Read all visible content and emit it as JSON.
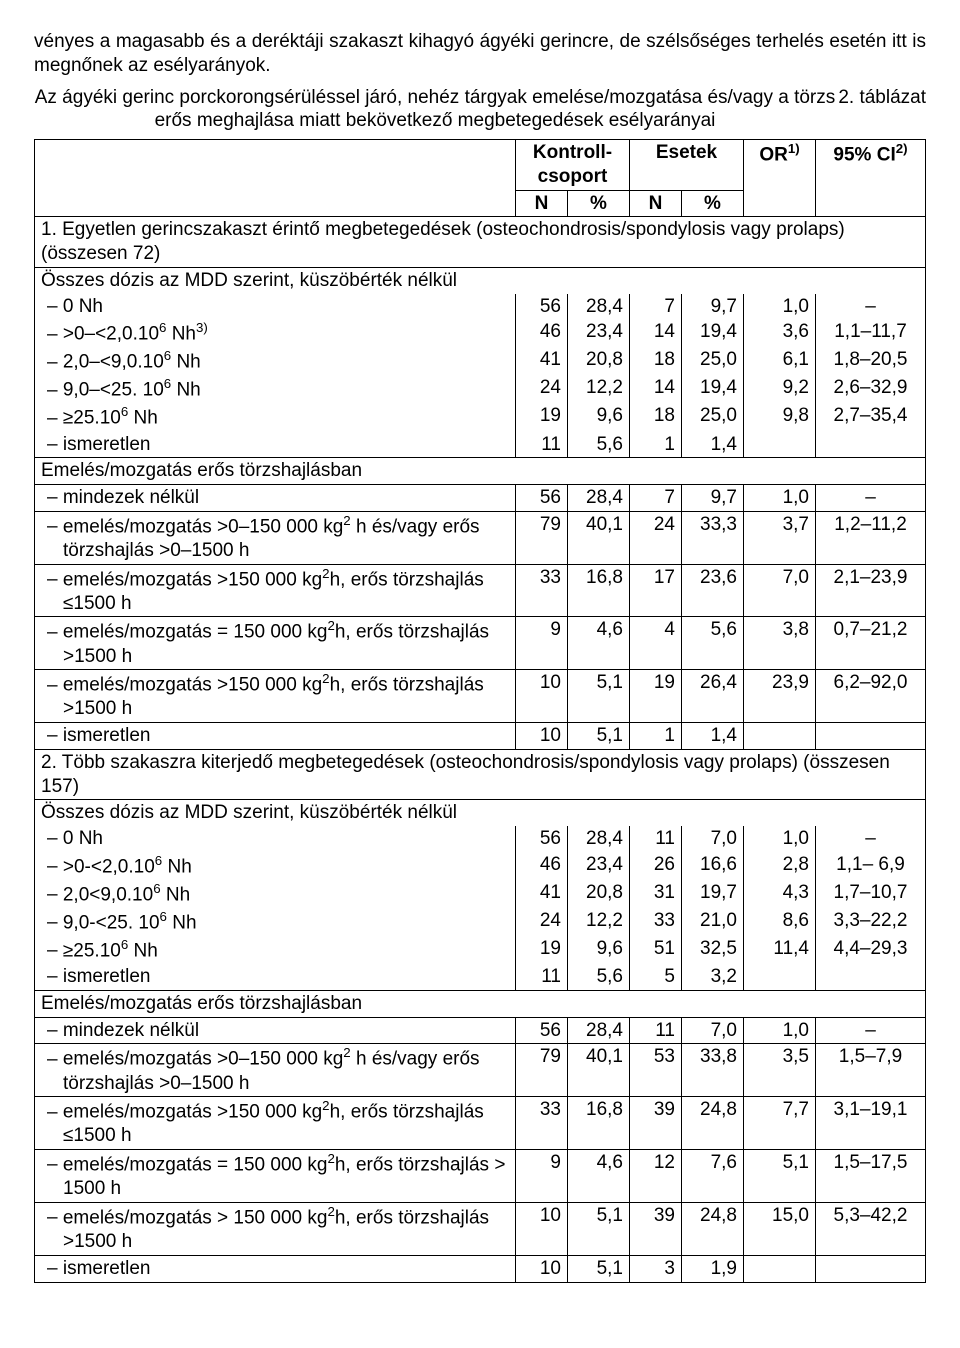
{
  "intro": "vényes a magasabb és a deréktáji szakaszt kihagyó ágyéki gerincre, de szélsőséges terhelés esetén itt is megnőnek az esélyarányok.",
  "tableCaptionNumber": "2. táblázat",
  "tableCaption": "Az ágyéki gerinc porckorongsérüléssel járó, nehéz tárgyak emelése/mozgatása és/vagy a törzs erős meghajlása miatt bekövetkező megbetegedések esélyarányai",
  "headers": {
    "control": "Kontroll-csoport",
    "cases": "Esetek",
    "or": "OR",
    "orSup": "1)",
    "ci": "95% CI",
    "ciSup": "2)",
    "n": "N",
    "pct": "%"
  },
  "section1Title": "1. Egyetlen gerincszakaszt érintő megbetegedések (osteochondrosis/spondylosis vagy prolaps) (összesen 72)",
  "section2Title": "2. Több szakaszra kiterjedő megbetegedések (osteochondrosis/spondylosis vagy prolaps) (összesen 157)",
  "doseHeader": "Összes dózis az MDD szerint, küszöbérték nélkül",
  "liftHeader": "Emelés/mozgatás erős törzshajlásban",
  "rows1a": [
    {
      "label": "0 Nh",
      "cn": "56",
      "cp": "28,4",
      "en": "7",
      "ep": "9,7",
      "or": "1,0",
      "ci": "–"
    },
    {
      "label": ">0–<2,0.10⁶ Nh³⁾",
      "cn": "46",
      "cp": "23,4",
      "en": "14",
      "ep": "19,4",
      "or": "3,6",
      "ci": "1,1–11,7"
    },
    {
      "label": "2,0–<9,0.10⁶ Nh",
      "cn": "41",
      "cp": "20,8",
      "en": "18",
      "ep": "25,0",
      "or": "6,1",
      "ci": "1,8–20,5"
    },
    {
      "label": "9,0–<25. 10⁶ Nh",
      "cn": "24",
      "cp": "12,2",
      "en": "14",
      "ep": "19,4",
      "or": "9,2",
      "ci": "2,6–32,9"
    },
    {
      "label": "≥25.10⁶ Nh",
      "cn": "19",
      "cp": "9,6",
      "en": "18",
      "ep": "25,0",
      "or": "9,8",
      "ci": "2,7–35,4"
    },
    {
      "label": "ismeretlen",
      "cn": "11",
      "cp": "5,6",
      "en": "1",
      "ep": "1,4",
      "or": "",
      "ci": ""
    }
  ],
  "rows1b": [
    {
      "label": "mindezek nélkül",
      "cn": "56",
      "cp": "28,4",
      "en": "7",
      "ep": "9,7",
      "or": "1,0",
      "ci": "–"
    },
    {
      "label": "emelés/mozgatás >0–150 000 kg² h és/vagy erős törzshajlás >0–1500 h",
      "cn": "79",
      "cp": "40,1",
      "en": "24",
      "ep": "33,3",
      "or": "3,7",
      "ci": "1,2–11,2"
    },
    {
      "label": "emelés/mozgatás >150 000 kg²h, erős törzshajlás ≤1500 h",
      "cn": "33",
      "cp": "16,8",
      "en": "17",
      "ep": "23,6",
      "or": "7,0",
      "ci": "2,1–23,9"
    },
    {
      "label": "emelés/mozgatás = 150 000 kg²h, erős törzshajlás >1500 h",
      "cn": "9",
      "cp": "4,6",
      "en": "4",
      "ep": "5,6",
      "or": "3,8",
      "ci": "0,7–21,2"
    },
    {
      "label": "emelés/mozgatás >150 000 kg²h, erős törzshajlás >1500 h",
      "cn": "10",
      "cp": "5,1",
      "en": "19",
      "ep": "26,4",
      "or": "23,9",
      "ci": "6,2–92,0"
    },
    {
      "label": "ismeretlen",
      "cn": "10",
      "cp": "5,1",
      "en": "1",
      "ep": "1,4",
      "or": "",
      "ci": ""
    }
  ],
  "rows2a": [
    {
      "label": "0 Nh",
      "cn": "56",
      "cp": "28,4",
      "en": "11",
      "ep": "7,0",
      "or": "1,0",
      "ci": "–"
    },
    {
      "label": ">0-<2,0.10⁶ Nh",
      "cn": "46",
      "cp": "23,4",
      "en": "26",
      "ep": "16,6",
      "or": "2,8",
      "ci": "1,1– 6,9"
    },
    {
      "label": "2,0<9,0.10⁶ Nh",
      "cn": "41",
      "cp": "20,8",
      "en": "31",
      "ep": "19,7",
      "or": "4,3",
      "ci": "1,7–10,7"
    },
    {
      "label": "9,0-<25. 10⁶ Nh",
      "cn": "24",
      "cp": "12,2",
      "en": "33",
      "ep": "21,0",
      "or": "8,6",
      "ci": "3,3–22,2"
    },
    {
      "label": "≥25.10⁶ Nh",
      "cn": "19",
      "cp": "9,6",
      "en": "51",
      "ep": "32,5",
      "or": "11,4",
      "ci": "4,4–29,3"
    },
    {
      "label": "ismeretlen",
      "cn": "11",
      "cp": "5,6",
      "en": "5",
      "ep": "3,2",
      "or": "",
      "ci": ""
    }
  ],
  "rows2b": [
    {
      "label": "mindezek nélkül",
      "cn": "56",
      "cp": "28,4",
      "en": "11",
      "ep": "7,0",
      "or": "1,0",
      "ci": "–"
    },
    {
      "label": "emelés/mozgatás >0–150 000 kg² h és/vagy erős törzshajlás >0–1500 h",
      "cn": "79",
      "cp": "40,1",
      "en": "53",
      "ep": "33,8",
      "or": "3,5",
      "ci": "1,5–7,9"
    },
    {
      "label": "emelés/mozgatás >150 000 kg²h, erős törzshajlás ≤1500 h",
      "cn": "33",
      "cp": "16,8",
      "en": "39",
      "ep": "24,8",
      "or": "7,7",
      "ci": "3,1–19,1"
    },
    {
      "label": "emelés/mozgatás = 150 000 kg²h, erős törzshajlás > 1500 h",
      "cn": "9",
      "cp": "4,6",
      "en": "12",
      "ep": "7,6",
      "or": "5,1",
      "ci": "1,5–17,5"
    },
    {
      "label": "emelés/mozgatás > 150 000 kg²h, erős törzshajlás >1500 h",
      "cn": "10",
      "cp": "5,1",
      "en": "39",
      "ep": "24,8",
      "or": "15,0",
      "ci": "5,3–42,2"
    },
    {
      "label": "ismeretlen",
      "cn": "10",
      "cp": "5,1",
      "en": "3",
      "ep": "1,9",
      "or": "",
      "ci": ""
    }
  ],
  "colWidths": [
    "auto",
    "52",
    "62",
    "52",
    "62",
    "70",
    "110"
  ]
}
